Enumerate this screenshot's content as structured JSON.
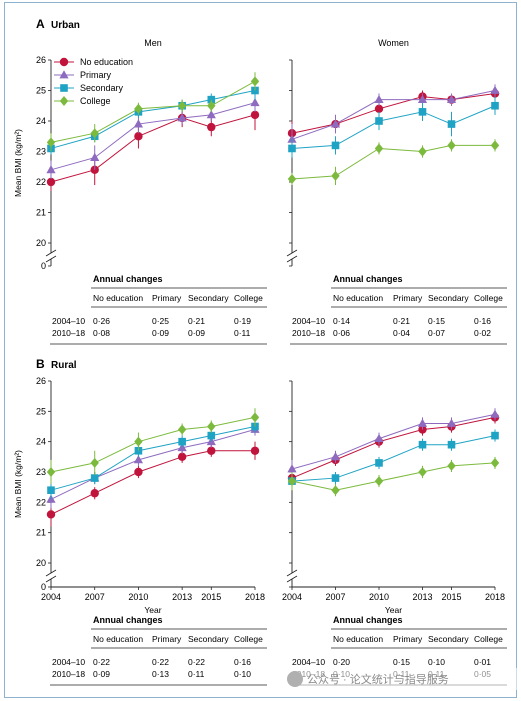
{
  "sections": [
    {
      "letter": "A",
      "title": "Urban",
      "ylabel": "Mean BMI (kg/m²)",
      "show_x_axis": false,
      "panels": [
        {
          "facet": "Men",
          "series": [
            {
              "name": "No education",
              "values": [
                22.0,
                22.4,
                23.5,
                24.1,
                23.8,
                24.2
              ],
              "err": [
                0.3,
                0.5,
                0.4,
                0.3,
                0.3,
                0.5
              ]
            },
            {
              "name": "Primary",
              "values": [
                22.4,
                22.8,
                23.9,
                24.1,
                24.2,
                24.6
              ],
              "err": [
                0.3,
                0.4,
                0.3,
                0.2,
                0.2,
                0.3
              ]
            },
            {
              "name": "Secondary",
              "values": [
                23.1,
                23.5,
                24.3,
                24.5,
                24.7,
                25.0
              ],
              "err": [
                0.2,
                0.2,
                0.2,
                0.2,
                0.2,
                0.3
              ]
            },
            {
              "name": "College",
              "values": [
                23.3,
                23.6,
                24.4,
                24.5,
                24.5,
                25.3
              ],
              "err": [
                0.3,
                0.3,
                0.2,
                0.2,
                0.2,
                0.3
              ]
            }
          ],
          "annual": {
            "cols": [
              "No education",
              "Primary",
              "Secondary",
              "College"
            ],
            "rows": [
              {
                "label": "2004–10",
                "vals": [
                  "0·26",
                  "0·25",
                  "0·21",
                  "0·19"
                ]
              },
              {
                "label": "2010–18",
                "vals": [
                  "0·08",
                  "0·09",
                  "0·09",
                  "0·11"
                ]
              }
            ]
          }
        },
        {
          "facet": "Women",
          "series": [
            {
              "name": "No education",
              "values": [
                23.6,
                23.9,
                24.4,
                24.8,
                24.7,
                24.9
              ],
              "err": [
                0.4,
                0.3,
                0.3,
                0.2,
                0.2,
                0.2
              ]
            },
            {
              "name": "Primary",
              "values": [
                23.4,
                23.9,
                24.7,
                24.7,
                24.7,
                25.0
              ],
              "err": [
                0.5,
                0.3,
                0.2,
                0.2,
                0.2,
                0.2
              ]
            },
            {
              "name": "Secondary",
              "values": [
                23.1,
                23.2,
                24.0,
                24.3,
                23.9,
                24.5
              ],
              "err": [
                0.3,
                0.3,
                0.3,
                0.3,
                0.4,
                0.3
              ]
            },
            {
              "name": "College",
              "values": [
                22.1,
                22.2,
                23.1,
                23.0,
                23.2,
                23.2
              ],
              "err": [
                0.2,
                0.3,
                0.2,
                0.2,
                0.2,
                0.2
              ]
            }
          ],
          "annual": {
            "cols": [
              "No education",
              "Primary",
              "Secondary",
              "College"
            ],
            "rows": [
              {
                "label": "2004–10",
                "vals": [
                  "0·14",
                  "0·21",
                  "0·15",
                  "0·16"
                ]
              },
              {
                "label": "2010–18",
                "vals": [
                  "0·06",
                  "0·04",
                  "0·07",
                  "0·02"
                ]
              }
            ]
          }
        }
      ]
    },
    {
      "letter": "B",
      "title": "Rural",
      "ylabel": "Mean BMI (kg/m²)",
      "show_x_axis": true,
      "xlabel": "Year",
      "panels": [
        {
          "facet": "",
          "series": [
            {
              "name": "No education",
              "values": [
                21.6,
                22.3,
                23.0,
                23.5,
                23.7,
                23.7
              ],
              "err": [
                0.4,
                0.2,
                0.2,
                0.2,
                0.2,
                0.3
              ]
            },
            {
              "name": "Primary",
              "values": [
                22.1,
                22.8,
                23.4,
                23.8,
                24.0,
                24.4
              ],
              "err": [
                0.3,
                0.2,
                0.2,
                0.2,
                0.2,
                0.2
              ]
            },
            {
              "name": "Secondary",
              "values": [
                22.4,
                22.8,
                23.7,
                24.0,
                24.2,
                24.5
              ],
              "err": [
                0.3,
                0.2,
                0.2,
                0.2,
                0.2,
                0.2
              ]
            },
            {
              "name": "College",
              "values": [
                23.0,
                23.3,
                24.0,
                24.4,
                24.5,
                24.8
              ],
              "err": [
                0.4,
                0.4,
                0.3,
                0.2,
                0.2,
                0.3
              ]
            }
          ],
          "annual": {
            "cols": [
              "No education",
              "Primary",
              "Secondary",
              "College"
            ],
            "rows": [
              {
                "label": "2004–10",
                "vals": [
                  "0·22",
                  "0·22",
                  "0·22",
                  "0·16"
                ]
              },
              {
                "label": "2010–18",
                "vals": [
                  "0·09",
                  "0·13",
                  "0·11",
                  "0·10"
                ]
              }
            ]
          }
        },
        {
          "facet": "",
          "series": [
            {
              "name": "No education",
              "values": [
                22.8,
                23.4,
                24.0,
                24.4,
                24.5,
                24.8
              ],
              "err": [
                0.3,
                0.2,
                0.2,
                0.2,
                0.2,
                0.2
              ]
            },
            {
              "name": "Primary",
              "values": [
                23.1,
                23.5,
                24.1,
                24.6,
                24.6,
                24.9
              ],
              "err": [
                0.3,
                0.2,
                0.2,
                0.2,
                0.2,
                0.2
              ]
            },
            {
              "name": "Secondary",
              "values": [
                22.7,
                22.8,
                23.3,
                23.9,
                23.9,
                24.2
              ],
              "err": [
                0.2,
                0.2,
                0.2,
                0.2,
                0.2,
                0.2
              ]
            },
            {
              "name": "College",
              "values": [
                22.7,
                22.4,
                22.7,
                23.0,
                23.2,
                23.3
              ],
              "err": [
                0.3,
                0.2,
                0.2,
                0.2,
                0.2,
                0.2
              ]
            }
          ],
          "annual": {
            "cols": [
              "No education",
              "Primary",
              "Secondary",
              "College"
            ],
            "rows": [
              {
                "label": "2004–10",
                "vals": [
                  "0·20",
                  "0·15",
                  "0·10",
                  "0·01"
                ]
              },
              {
                "label": "2010–18",
                "vals": [
                  "0·10",
                  "0·11",
                  "0·11",
                  "0·05"
                ]
              }
            ]
          }
        }
      ]
    }
  ],
  "chart_data": [
    {
      "type": "line",
      "title": "Urban — Men",
      "x": [
        2004,
        2007,
        2010,
        2013,
        2015,
        2018
      ],
      "xlabel": "Year",
      "ylabel": "Mean BMI (kg/m²)",
      "ylim": [
        20,
        26
      ],
      "series_ref": "sections.0.panels.0.series"
    },
    {
      "type": "line",
      "title": "Urban — Women",
      "x": [
        2004,
        2007,
        2010,
        2013,
        2015,
        2018
      ],
      "xlabel": "Year",
      "ylabel": "Mean BMI (kg/m²)",
      "ylim": [
        20,
        26
      ],
      "series_ref": "sections.0.panels.1.series"
    },
    {
      "type": "line",
      "title": "Rural",
      "x": [
        2004,
        2007,
        2010,
        2013,
        2015,
        2018
      ],
      "xlabel": "Year",
      "ylabel": "Mean BMI (kg/m²)",
      "ylim": [
        20,
        26
      ],
      "series_ref": "sections.1.panels.0.series"
    },
    {
      "type": "line",
      "title": "Rural",
      "x": [
        2004,
        2007,
        2010,
        2013,
        2015,
        2018
      ],
      "xlabel": "Year",
      "ylabel": "Mean BMI (kg/m²)",
      "ylim": [
        20,
        26
      ],
      "series_ref": "sections.1.panels.1.series"
    }
  ],
  "axis": {
    "x_values": [
      2004,
      2007,
      2010,
      2013,
      2015,
      2018
    ],
    "x_ticks": [
      "2004",
      "2007",
      "2010",
      "2013",
      "2015",
      "2018"
    ],
    "y_ticks": [
      20,
      21,
      22,
      23,
      24,
      25,
      26
    ],
    "y_zero_label": "0",
    "ylim": [
      20,
      26
    ]
  },
  "annual_title": "Annual changes",
  "legend": [
    {
      "name": "No education",
      "color": "#c0143c",
      "marker": "circle"
    },
    {
      "name": "Primary",
      "color": "#8e6bbf",
      "marker": "triangle"
    },
    {
      "name": "Secondary",
      "color": "#1fa3c4",
      "marker": "square"
    },
    {
      "name": "College",
      "color": "#7cba3d",
      "marker": "diamond"
    }
  ],
  "colors": {
    "no_education": "#c0143c",
    "primary": "#8e6bbf",
    "secondary": "#1fa3c4",
    "college": "#7cba3d",
    "frame": "#8fb3cf"
  },
  "watermark": {
    "text": "公众号 · 论文统计与指导服务",
    "icon": "wechat-icon"
  }
}
